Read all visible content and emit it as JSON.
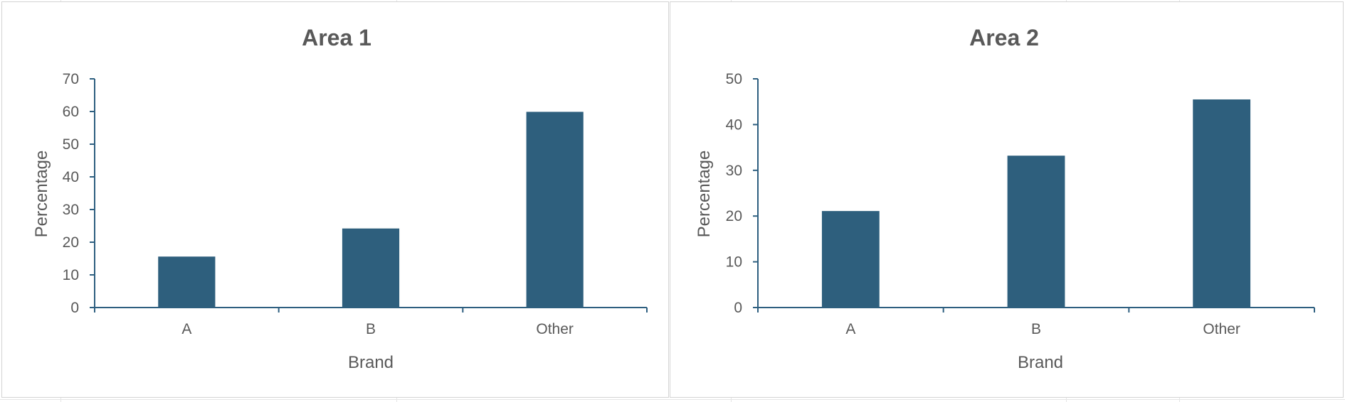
{
  "colors": {
    "bar": "#2e5f7d",
    "axis": "#2e5f80",
    "text": "#595959"
  },
  "chart_data": [
    {
      "type": "bar",
      "title": "Area 1",
      "xlabel": "Brand",
      "ylabel": "Percentage",
      "categories": [
        "A",
        "B",
        "Other"
      ],
      "values": [
        15.6,
        24.2,
        59.9
      ],
      "ylim": [
        0,
        70
      ],
      "yticks": [
        0,
        10,
        20,
        30,
        40,
        50,
        60,
        70
      ],
      "grid": false,
      "legend": "none"
    },
    {
      "type": "bar",
      "title": "Area 2",
      "xlabel": "Brand",
      "ylabel": "Percentage",
      "categories": [
        "A",
        "B",
        "Other"
      ],
      "values": [
        21.1,
        33.2,
        45.5
      ],
      "ylim": [
        0,
        50
      ],
      "yticks": [
        0,
        10,
        20,
        30,
        40,
        50
      ],
      "grid": false,
      "legend": "none"
    }
  ]
}
